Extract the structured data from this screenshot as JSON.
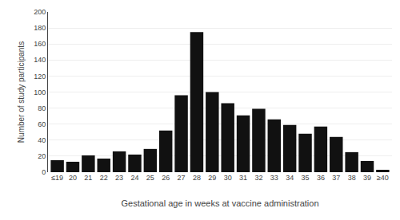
{
  "chart_data": {
    "type": "bar",
    "categories": [
      "≤19",
      "20",
      "21",
      "22",
      "23",
      "24",
      "25",
      "26",
      "27",
      "28",
      "29",
      "30",
      "31",
      "32",
      "33",
      "34",
      "35",
      "36",
      "37",
      "38",
      "39",
      "≥40"
    ],
    "values": [
      15,
      13,
      21,
      17,
      26,
      22,
      29,
      52,
      96,
      175,
      100,
      86,
      71,
      79,
      66,
      59,
      48,
      57,
      44,
      25,
      14,
      3
    ],
    "color": "#111111",
    "xlabel": "Gestational age in weeks at vaccine administration",
    "ylabel": "Number of study participants",
    "ylim": [
      0,
      200
    ],
    "yticks": [
      0,
      20,
      40,
      60,
      80,
      100,
      120,
      140,
      160,
      180,
      200
    ],
    "grid": true
  }
}
